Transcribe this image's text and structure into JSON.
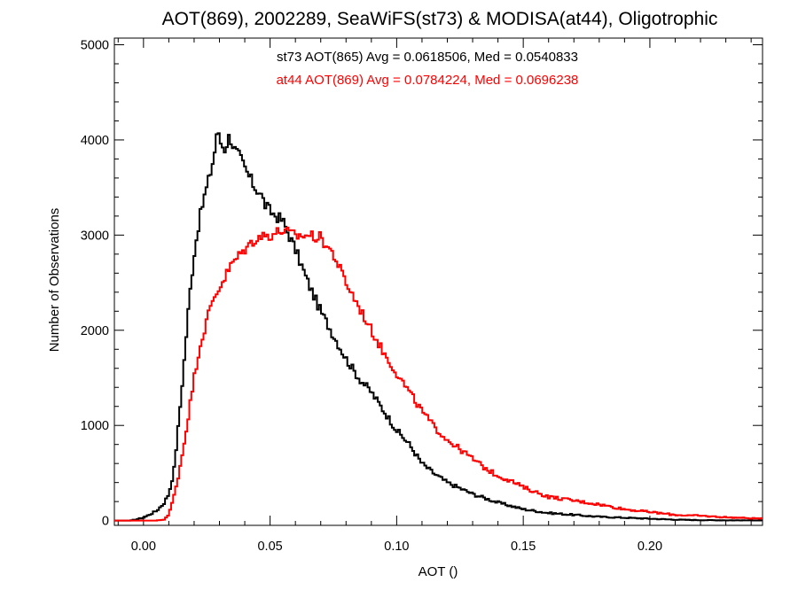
{
  "chart_data": {
    "type": "line",
    "title": "AOT(869), 2002289, SeaWiFS(st73) & MODISA(at44), Oligotrophic",
    "xlabel": "AOT ()",
    "ylabel": "Number of Observations",
    "xlim": [
      -0.0115,
      0.2445
    ],
    "ylim": [
      -50,
      5070
    ],
    "x_ticks": [
      "0.00",
      "0.05",
      "0.10",
      "0.15",
      "0.20"
    ],
    "y_ticks": [
      "0",
      "1000",
      "2000",
      "3000",
      "4000",
      "5000"
    ],
    "grid": false,
    "line_style": "step",
    "series": [
      {
        "name": "st73",
        "label": "st73 AOT(865) Avg = 0.0618506, Med = 0.0540833",
        "color": "#000000",
        "x": [
          -0.005,
          0.0,
          0.005,
          0.008,
          0.01,
          0.012,
          0.014,
          0.016,
          0.018,
          0.02,
          0.022,
          0.024,
          0.026,
          0.028,
          0.029,
          0.03,
          0.032,
          0.034,
          0.036,
          0.038,
          0.04,
          0.042,
          0.044,
          0.046,
          0.048,
          0.05,
          0.055,
          0.06,
          0.065,
          0.07,
          0.075,
          0.08,
          0.085,
          0.09,
          0.095,
          0.1,
          0.105,
          0.11,
          0.115,
          0.12,
          0.13,
          0.14,
          0.15,
          0.16,
          0.17,
          0.18,
          0.19,
          0.2,
          0.21,
          0.22,
          0.23,
          0.2445
        ],
        "values": [
          0,
          30,
          100,
          180,
          280,
          520,
          1050,
          1650,
          2300,
          2800,
          3150,
          3400,
          3600,
          3850,
          4100,
          4000,
          3900,
          4050,
          3900,
          3820,
          3700,
          3600,
          3500,
          3450,
          3320,
          3250,
          3150,
          2850,
          2500,
          2200,
          1950,
          1700,
          1500,
          1350,
          1150,
          950,
          800,
          600,
          490,
          400,
          280,
          190,
          120,
          80,
          60,
          40,
          30,
          20,
          10,
          5,
          3,
          2
        ]
      },
      {
        "name": "at44",
        "label": "at44 AOT(869) Avg = 0.0784224, Med = 0.0696238",
        "color": "#ff0000",
        "x": [
          -0.005,
          0.005,
          0.008,
          0.01,
          0.012,
          0.014,
          0.016,
          0.018,
          0.02,
          0.022,
          0.024,
          0.026,
          0.028,
          0.03,
          0.035,
          0.04,
          0.045,
          0.05,
          0.055,
          0.06,
          0.065,
          0.07,
          0.075,
          0.08,
          0.085,
          0.09,
          0.095,
          0.1,
          0.105,
          0.11,
          0.115,
          0.12,
          0.125,
          0.13,
          0.135,
          0.14,
          0.145,
          0.15,
          0.155,
          0.16,
          0.17,
          0.18,
          0.19,
          0.2,
          0.21,
          0.22,
          0.23,
          0.2445
        ],
        "values": [
          0,
          0,
          10,
          60,
          250,
          500,
          800,
          1150,
          1500,
          1800,
          2000,
          2200,
          2350,
          2450,
          2700,
          2850,
          2980,
          3000,
          3050,
          2990,
          3000,
          2970,
          2800,
          2500,
          2250,
          2000,
          1760,
          1550,
          1350,
          1150,
          980,
          850,
          750,
          650,
          550,
          470,
          420,
          350,
          300,
          250,
          210,
          170,
          120,
          90,
          60,
          50,
          35,
          20
        ]
      }
    ]
  }
}
